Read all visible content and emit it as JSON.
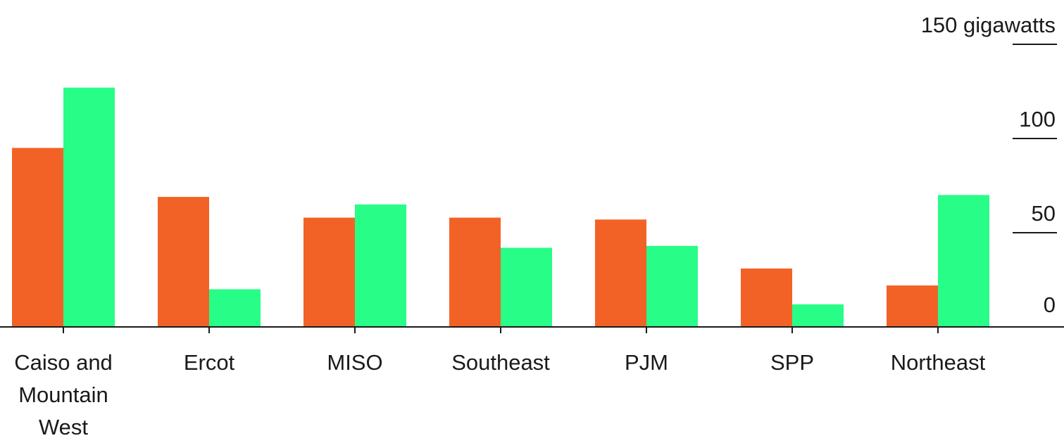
{
  "chart_data": {
    "type": "bar",
    "title": "",
    "xlabel": "",
    "ylabel": "",
    "unit": "gigawatts",
    "ylim": [
      0,
      150
    ],
    "yticks": [
      0,
      50,
      100,
      150
    ],
    "ytick_labels": [
      "0",
      "50",
      "100",
      "150 gigawatts"
    ],
    "categories": [
      "Caiso and Mountain West",
      "Ercot",
      "MISO",
      "Southeast",
      "PJM",
      "SPP",
      "Northeast"
    ],
    "category_label_lines": [
      [
        "Caiso and",
        "Mountain",
        "West"
      ],
      [
        "Ercot"
      ],
      [
        "MISO"
      ],
      [
        "Southeast"
      ],
      [
        "PJM"
      ],
      [
        "SPP"
      ],
      [
        "Northeast"
      ]
    ],
    "series": [
      {
        "color": "#f26226",
        "values": [
          95,
          69,
          58,
          58,
          57,
          31,
          22
        ]
      },
      {
        "color": "#28fd87",
        "values": [
          127,
          20,
          65,
          42,
          43,
          12,
          70
        ]
      }
    ],
    "grid": false,
    "legend": "none",
    "y_axis_side": "right"
  }
}
